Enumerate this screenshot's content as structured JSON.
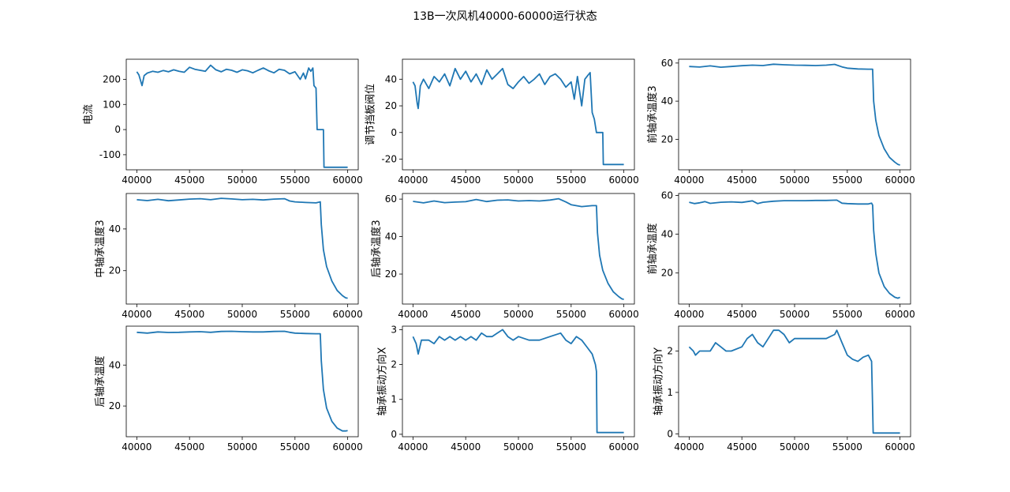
{
  "figure": {
    "title": "13B一次风机40000-60000运行状态",
    "line_color": "#1f77b4"
  },
  "chart_data": [
    {
      "type": "line",
      "ylabel": "电流",
      "xlim": [
        39000,
        61000
      ],
      "ylim": [
        -160,
        280
      ],
      "xticks": [
        40000,
        45000,
        50000,
        55000,
        60000
      ],
      "yticks": [
        -100,
        0,
        100,
        200
      ],
      "points": [
        [
          40000,
          230
        ],
        [
          40200,
          218
        ],
        [
          40500,
          175
        ],
        [
          40700,
          215
        ],
        [
          41000,
          225
        ],
        [
          41500,
          232
        ],
        [
          42000,
          228
        ],
        [
          42500,
          235
        ],
        [
          43000,
          230
        ],
        [
          43500,
          238
        ],
        [
          44000,
          232
        ],
        [
          44500,
          228
        ],
        [
          45000,
          248
        ],
        [
          45500,
          240
        ],
        [
          46000,
          236
        ],
        [
          46500,
          232
        ],
        [
          47000,
          256
        ],
        [
          47500,
          238
        ],
        [
          48000,
          230
        ],
        [
          48500,
          240
        ],
        [
          49000,
          236
        ],
        [
          49500,
          228
        ],
        [
          50000,
          238
        ],
        [
          50500,
          234
        ],
        [
          51000,
          226
        ],
        [
          51500,
          236
        ],
        [
          52000,
          245
        ],
        [
          52500,
          234
        ],
        [
          53000,
          226
        ],
        [
          53500,
          240
        ],
        [
          54000,
          236
        ],
        [
          54500,
          222
        ],
        [
          55000,
          230
        ],
        [
          55500,
          200
        ],
        [
          55800,
          225
        ],
        [
          56000,
          202
        ],
        [
          56300,
          245
        ],
        [
          56500,
          232
        ],
        [
          56700,
          245
        ],
        [
          56800,
          175
        ],
        [
          57000,
          165
        ],
        [
          57100,
          0
        ],
        [
          57700,
          0
        ],
        [
          57750,
          -150
        ],
        [
          60000,
          -150
        ]
      ]
    },
    {
      "type": "line",
      "ylabel": "调节挡板阀位",
      "xlim": [
        39000,
        61000
      ],
      "ylim": [
        -28,
        55
      ],
      "xticks": [
        40000,
        45000,
        50000,
        55000,
        60000
      ],
      "yticks": [
        -20,
        0,
        20,
        40
      ],
      "points": [
        [
          40000,
          38
        ],
        [
          40200,
          35
        ],
        [
          40400,
          22
        ],
        [
          40500,
          18
        ],
        [
          40700,
          35
        ],
        [
          41000,
          40
        ],
        [
          41500,
          33
        ],
        [
          42000,
          42
        ],
        [
          42500,
          38
        ],
        [
          43000,
          44
        ],
        [
          43500,
          35
        ],
        [
          44000,
          48
        ],
        [
          44500,
          40
        ],
        [
          45000,
          46
        ],
        [
          45500,
          38
        ],
        [
          46000,
          44
        ],
        [
          46500,
          36
        ],
        [
          47000,
          47
        ],
        [
          47500,
          40
        ],
        [
          48000,
          44
        ],
        [
          48500,
          48
        ],
        [
          49000,
          36
        ],
        [
          49500,
          33
        ],
        [
          50000,
          38
        ],
        [
          50500,
          42
        ],
        [
          51000,
          37
        ],
        [
          51500,
          40
        ],
        [
          52000,
          44
        ],
        [
          52500,
          36
        ],
        [
          53000,
          42
        ],
        [
          53500,
          44
        ],
        [
          54000,
          40
        ],
        [
          54500,
          34
        ],
        [
          55000,
          38
        ],
        [
          55300,
          25
        ],
        [
          55600,
          42
        ],
        [
          56000,
          20
        ],
        [
          56300,
          40
        ],
        [
          56600,
          43
        ],
        [
          56800,
          45
        ],
        [
          57000,
          15
        ],
        [
          57200,
          10
        ],
        [
          57400,
          0
        ],
        [
          58000,
          0
        ],
        [
          58050,
          -24
        ],
        [
          60000,
          -24
        ]
      ]
    },
    {
      "type": "line",
      "ylabel": "前轴承温度3",
      "xlim": [
        39000,
        61000
      ],
      "ylim": [
        4,
        62
      ],
      "xticks": [
        40000,
        45000,
        50000,
        55000,
        60000
      ],
      "yticks": [
        20,
        40,
        60
      ],
      "points": [
        [
          40000,
          58.2
        ],
        [
          41000,
          57.9
        ],
        [
          42000,
          58.5
        ],
        [
          43000,
          57.8
        ],
        [
          44000,
          58.2
        ],
        [
          45000,
          58.6
        ],
        [
          46000,
          58.9
        ],
        [
          47000,
          58.7
        ],
        [
          48000,
          59.4
        ],
        [
          49000,
          59.1
        ],
        [
          50000,
          58.9
        ],
        [
          51000,
          58.8
        ],
        [
          52000,
          58.7
        ],
        [
          53000,
          58.9
        ],
        [
          53800,
          59.3
        ],
        [
          54500,
          58.0
        ],
        [
          55000,
          57.3
        ],
        [
          56000,
          56.9
        ],
        [
          57000,
          56.8
        ],
        [
          57400,
          56.8
        ],
        [
          57500,
          40
        ],
        [
          57700,
          30
        ],
        [
          58000,
          22
        ],
        [
          58500,
          15
        ],
        [
          59000,
          10.5
        ],
        [
          59500,
          8
        ],
        [
          59800,
          6.8
        ],
        [
          60000,
          6.5
        ]
      ]
    },
    {
      "type": "line",
      "ylabel": "中轴承温度3",
      "xlim": [
        39000,
        61000
      ],
      "ylim": [
        4,
        57
      ],
      "xticks": [
        40000,
        45000,
        50000,
        55000,
        60000
      ],
      "yticks": [
        20,
        40
      ],
      "points": [
        [
          40000,
          54.0
        ],
        [
          41000,
          53.6
        ],
        [
          42000,
          54.2
        ],
        [
          43000,
          53.5
        ],
        [
          44000,
          53.9
        ],
        [
          45000,
          54.3
        ],
        [
          46000,
          54.5
        ],
        [
          47000,
          54.0
        ],
        [
          48000,
          54.7
        ],
        [
          49000,
          54.4
        ],
        [
          50000,
          54.0
        ],
        [
          51000,
          54.2
        ],
        [
          52000,
          53.9
        ],
        [
          53000,
          54.3
        ],
        [
          54000,
          54.5
        ],
        [
          54500,
          53.4
        ],
        [
          55000,
          53.0
        ],
        [
          56000,
          52.7
        ],
        [
          57000,
          52.5
        ],
        [
          57400,
          53.0
        ],
        [
          57500,
          42
        ],
        [
          57700,
          30
        ],
        [
          58000,
          22
        ],
        [
          58500,
          15
        ],
        [
          59000,
          10.5
        ],
        [
          59500,
          8
        ],
        [
          59800,
          7.0
        ],
        [
          60000,
          6.8
        ]
      ]
    },
    {
      "type": "line",
      "ylabel": "后轴承温度3",
      "xlim": [
        39000,
        61000
      ],
      "ylim": [
        4,
        63
      ],
      "xticks": [
        40000,
        45000,
        50000,
        55000,
        60000
      ],
      "yticks": [
        20,
        40,
        60
      ],
      "points": [
        [
          40000,
          58.8
        ],
        [
          41000,
          58.0
        ],
        [
          42000,
          59.0
        ],
        [
          43000,
          58.1
        ],
        [
          44000,
          58.4
        ],
        [
          45000,
          58.6
        ],
        [
          46000,
          59.8
        ],
        [
          47000,
          58.7
        ],
        [
          48000,
          59.4
        ],
        [
          49000,
          59.6
        ],
        [
          50000,
          59.0
        ],
        [
          51000,
          59.2
        ],
        [
          52000,
          59.0
        ],
        [
          53000,
          59.5
        ],
        [
          53800,
          60.2
        ],
        [
          54500,
          58.5
        ],
        [
          55000,
          57.0
        ],
        [
          56000,
          56.0
        ],
        [
          57000,
          56.5
        ],
        [
          57400,
          56.5
        ],
        [
          57500,
          42
        ],
        [
          57700,
          30
        ],
        [
          58000,
          22
        ],
        [
          58500,
          15
        ],
        [
          59000,
          10.5
        ],
        [
          59500,
          8
        ],
        [
          59800,
          6.8
        ],
        [
          60000,
          6.5
        ]
      ]
    },
    {
      "type": "line",
      "ylabel": "前轴承温度",
      "xlim": [
        39000,
        61000
      ],
      "ylim": [
        4,
        61
      ],
      "xticks": [
        40000,
        45000,
        50000,
        55000,
        60000
      ],
      "yticks": [
        20,
        40,
        60
      ],
      "points": [
        [
          40000,
          56.5
        ],
        [
          40500,
          55.8
        ],
        [
          41000,
          56.2
        ],
        [
          41500,
          56.8
        ],
        [
          42000,
          55.9
        ],
        [
          43000,
          56.5
        ],
        [
          44000,
          56.7
        ],
        [
          45000,
          56.4
        ],
        [
          46000,
          57.2
        ],
        [
          46500,
          55.8
        ],
        [
          47000,
          56.5
        ],
        [
          48000,
          57.0
        ],
        [
          49000,
          57.3
        ],
        [
          50000,
          57.3
        ],
        [
          51000,
          57.3
        ],
        [
          52000,
          57.4
        ],
        [
          53000,
          57.4
        ],
        [
          54000,
          57.6
        ],
        [
          54500,
          56.0
        ],
        [
          55000,
          55.8
        ],
        [
          56000,
          55.6
        ],
        [
          57000,
          55.6
        ],
        [
          57300,
          56.0
        ],
        [
          57400,
          55.0
        ],
        [
          57500,
          42
        ],
        [
          57700,
          30
        ],
        [
          58000,
          20
        ],
        [
          58500,
          13
        ],
        [
          59000,
          9.5
        ],
        [
          59500,
          7.5
        ],
        [
          59800,
          7.0
        ],
        [
          60000,
          7.5
        ]
      ]
    },
    {
      "type": "line",
      "ylabel": "后轴承温度",
      "xlim": [
        39000,
        61000
      ],
      "ylim": [
        5,
        59
      ],
      "xticks": [
        40000,
        45000,
        50000,
        55000,
        60000
      ],
      "yticks": [
        20,
        40
      ],
      "points": [
        [
          40000,
          56.0
        ],
        [
          41000,
          55.6
        ],
        [
          42000,
          56.2
        ],
        [
          43000,
          55.9
        ],
        [
          44000,
          56.0
        ],
        [
          45000,
          56.2
        ],
        [
          46000,
          56.3
        ],
        [
          47000,
          56.0
        ],
        [
          48000,
          56.4
        ],
        [
          49000,
          56.5
        ],
        [
          50000,
          56.3
        ],
        [
          51000,
          56.2
        ],
        [
          52000,
          56.2
        ],
        [
          53000,
          56.4
        ],
        [
          54000,
          56.5
        ],
        [
          54500,
          56.0
        ],
        [
          55000,
          55.6
        ],
        [
          56000,
          55.4
        ],
        [
          57000,
          55.3
        ],
        [
          57400,
          55.3
        ],
        [
          57500,
          42
        ],
        [
          57700,
          28
        ],
        [
          58000,
          19
        ],
        [
          58500,
          12.5
        ],
        [
          59000,
          9.2
        ],
        [
          59500,
          7.8
        ],
        [
          59800,
          7.8
        ],
        [
          60000,
          8.0
        ]
      ]
    },
    {
      "type": "line",
      "ylabel": "轴承振动方向X",
      "xlim": [
        39000,
        61000
      ],
      "ylim": [
        -0.07,
        3.1
      ],
      "xticks": [
        40000,
        45000,
        50000,
        55000,
        60000
      ],
      "yticks": [
        0,
        1,
        2,
        3
      ],
      "points": [
        [
          40000,
          2.8
        ],
        [
          40300,
          2.6
        ],
        [
          40500,
          2.3
        ],
        [
          40800,
          2.7
        ],
        [
          41500,
          2.7
        ],
        [
          42000,
          2.6
        ],
        [
          42500,
          2.8
        ],
        [
          43000,
          2.7
        ],
        [
          43500,
          2.8
        ],
        [
          44000,
          2.7
        ],
        [
          44500,
          2.8
        ],
        [
          45000,
          2.7
        ],
        [
          45500,
          2.8
        ],
        [
          46000,
          2.7
        ],
        [
          46500,
          2.9
        ],
        [
          47000,
          2.8
        ],
        [
          47500,
          2.8
        ],
        [
          48000,
          2.9
        ],
        [
          48500,
          3.0
        ],
        [
          49000,
          2.8
        ],
        [
          49500,
          2.7
        ],
        [
          50000,
          2.8
        ],
        [
          51000,
          2.7
        ],
        [
          52000,
          2.7
        ],
        [
          53000,
          2.8
        ],
        [
          54000,
          2.9
        ],
        [
          54500,
          2.7
        ],
        [
          55000,
          2.6
        ],
        [
          55500,
          2.8
        ],
        [
          56000,
          2.7
        ],
        [
          56500,
          2.5
        ],
        [
          57000,
          2.3
        ],
        [
          57300,
          2.0
        ],
        [
          57400,
          1.8
        ],
        [
          57450,
          0.05
        ],
        [
          60000,
          0.05
        ]
      ]
    },
    {
      "type": "line",
      "ylabel": "轴承振动方向Y",
      "xlim": [
        39000,
        61000
      ],
      "ylim": [
        -0.07,
        2.6
      ],
      "xticks": [
        40000,
        45000,
        50000,
        55000,
        60000
      ],
      "yticks": [
        0,
        1,
        2
      ],
      "points": [
        [
          40000,
          2.1
        ],
        [
          40400,
          2.0
        ],
        [
          40600,
          1.9
        ],
        [
          41000,
          2.0
        ],
        [
          42000,
          2.0
        ],
        [
          42500,
          2.2
        ],
        [
          43000,
          2.1
        ],
        [
          43500,
          2.0
        ],
        [
          44000,
          2.0
        ],
        [
          45000,
          2.1
        ],
        [
          45500,
          2.3
        ],
        [
          46000,
          2.4
        ],
        [
          46500,
          2.2
        ],
        [
          47000,
          2.1
        ],
        [
          47500,
          2.3
        ],
        [
          48000,
          2.5
        ],
        [
          48500,
          2.5
        ],
        [
          49000,
          2.4
        ],
        [
          49500,
          2.2
        ],
        [
          50000,
          2.3
        ],
        [
          51000,
          2.3
        ],
        [
          52000,
          2.3
        ],
        [
          53000,
          2.3
        ],
        [
          53800,
          2.4
        ],
        [
          54000,
          2.5
        ],
        [
          54500,
          2.2
        ],
        [
          55000,
          1.9
        ],
        [
          55500,
          1.8
        ],
        [
          56000,
          1.75
        ],
        [
          56500,
          1.85
        ],
        [
          57000,
          1.9
        ],
        [
          57300,
          1.75
        ],
        [
          57450,
          0.02
        ],
        [
          60000,
          0.02
        ]
      ]
    }
  ]
}
